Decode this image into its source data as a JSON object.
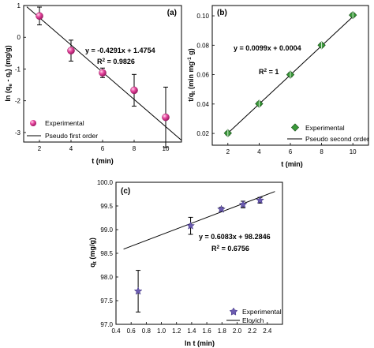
{
  "chart_data": [
    {
      "type": "scatter",
      "panel_label": "(a)",
      "xlabel": "t (min)",
      "ylabel_parts": [
        "ln (q",
        "e",
        " - q",
        "t",
        ") (mg/g)"
      ],
      "xlim": [
        1,
        11
      ],
      "ylim": [
        -3.3,
        1.0
      ],
      "xticks": [
        2,
        4,
        6,
        8,
        10
      ],
      "yticks": [
        1,
        0,
        -1,
        -2,
        -3
      ],
      "series": [
        {
          "name": "Experimental",
          "marker": "sphere",
          "color": "#e0409a",
          "x": [
            2,
            4,
            6,
            8,
            10
          ],
          "y": [
            0.67,
            -0.42,
            -1.12,
            -1.67,
            -2.52
          ],
          "error": [
            0.28,
            0.33,
            0.15,
            0.5,
            0.95
          ]
        }
      ],
      "fit": {
        "name": "Pseudo first order",
        "slope": -0.4291,
        "intercept": 1.4754,
        "x_range": [
          1.2,
          11.0
        ]
      },
      "equation": "y = -0.4291x + 1.4754",
      "r2_prefix": "R",
      "r2_exp": "2",
      "r2_suffix": " = 0.9826"
    },
    {
      "type": "scatter",
      "panel_label": "(b)",
      "xlabel": "t (min)",
      "ylabel_parts": [
        "t/q",
        "t",
        " (min mg",
        "-1",
        " g)"
      ],
      "xlim": [
        1,
        11
      ],
      "ylim": [
        0.012,
        0.107
      ],
      "xticks": [
        2,
        4,
        6,
        8,
        10
      ],
      "yticks": [
        0.02,
        0.04,
        0.06,
        0.08,
        0.1
      ],
      "yticklabels": [
        "0.02",
        "0.04",
        "0.06",
        "0.08",
        "0.10"
      ],
      "series": [
        {
          "name": "Experimental",
          "marker": "diamond",
          "color": "#3a9a3a",
          "x": [
            2,
            4,
            6,
            8,
            10
          ],
          "y": [
            0.0202,
            0.0402,
            0.06,
            0.08,
            0.1005
          ],
          "error": [
            0.0012,
            0.0012,
            0.0012,
            0.0012,
            0.0012
          ]
        }
      ],
      "fit": {
        "name": "Pseudo second order",
        "slope": 0.0099,
        "intercept": 0.0004,
        "x_range": [
          2.0,
          10.0
        ]
      },
      "equation": "y = 0.0099x + 0.0004",
      "r2_prefix": "R",
      "r2_exp": "2",
      "r2_suffix": " = 1"
    },
    {
      "type": "scatter",
      "panel_label": "(c)",
      "xlabel": "ln t (min)",
      "ylabel_parts": [
        "q",
        "t",
        " (mg/g)"
      ],
      "xlim": [
        0.4,
        2.6
      ],
      "ylim": [
        97.0,
        100.0
      ],
      "xticks": [
        0.4,
        0.6,
        0.8,
        1.0,
        1.2,
        1.4,
        1.6,
        1.8,
        2.0,
        2.2,
        2.4
      ],
      "xticklabels": [
        "0.4",
        "0.6",
        "0.8",
        "1.0",
        "1.2",
        "1.4",
        "1.6",
        "1.8",
        "2.0",
        "2.2",
        "2.4"
      ],
      "yticks": [
        97.0,
        97.5,
        98.0,
        98.5,
        99.0,
        99.5,
        100.0
      ],
      "yticklabels": [
        "97.0",
        "97.5",
        "98.0",
        "98.5",
        "99.0",
        "99.5",
        "100.0"
      ],
      "series": [
        {
          "name": "Experimental",
          "marker": "star",
          "color": "#6b5bb0",
          "x": [
            0.693,
            1.386,
            1.792,
            2.079,
            2.303
          ],
          "y": [
            97.7,
            99.08,
            99.43,
            99.53,
            99.62
          ],
          "error": [
            0.44,
            0.18,
            0.04,
            0.07,
            0.06
          ]
        }
      ],
      "fit": {
        "name": "Elovich",
        "slope": 0.6083,
        "intercept": 98.2846,
        "x_range": [
          0.5,
          2.5
        ]
      },
      "equation": "y = 0.6083x + 98.2846",
      "r2_prefix": "R",
      "r2_exp": "2",
      "r2_suffix": " = 0.6756"
    }
  ]
}
